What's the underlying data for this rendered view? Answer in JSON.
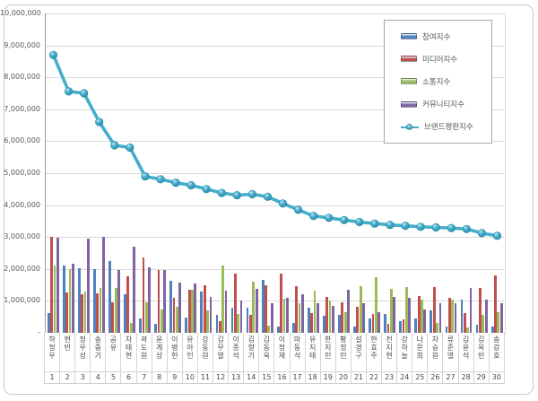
{
  "accent_colors": {
    "participation": "#4F81BD",
    "media": "#C0504D",
    "communication": "#9BBB59",
    "community": "#8064A2",
    "brand_line": "#44AECC",
    "gridline": "#d9d9d9",
    "axis_text": "#595959"
  },
  "legend": {
    "items": [
      {
        "key": "participation-index",
        "label": "참여지수",
        "color": "#4F81BD",
        "marker": "bar"
      },
      {
        "key": "media-index",
        "label": "미디어지수",
        "color": "#C0504D",
        "marker": "bar"
      },
      {
        "key": "communication-index",
        "label": "소통지수",
        "color": "#9BBB59",
        "marker": "bar"
      },
      {
        "key": "community-index",
        "label": "커뮤니티지수",
        "color": "#8064A2",
        "marker": "bar"
      },
      {
        "key": "brand-reputation-index",
        "label": "브랜드평판지수",
        "color": "#44AECC",
        "marker": "line"
      }
    ]
  },
  "chart_data": {
    "type": "bar+line",
    "title": "",
    "xlabel": "",
    "ylabel": "",
    "ylim": [
      0,
      10000000
    ],
    "ytick_interval": 1000000,
    "grid": true,
    "legend_position": "top-right-inside",
    "yticks": [
      {
        "v": 0,
        "label": "-"
      },
      {
        "v": 1000000,
        "label": "1,000,000"
      },
      {
        "v": 2000000,
        "label": "2,000,000"
      },
      {
        "v": 3000000,
        "label": "3,000,000"
      },
      {
        "v": 4000000,
        "label": "4,000,000"
      },
      {
        "v": 5000000,
        "label": "5,000,000"
      },
      {
        "v": 6000000,
        "label": "6,000,000"
      },
      {
        "v": 7000000,
        "label": "7,000,000"
      },
      {
        "v": 8000000,
        "label": "8,000,000"
      },
      {
        "v": 9000000,
        "label": "9,000,000"
      },
      {
        "v": 10000000,
        "label": "10,000,000"
      }
    ],
    "categories": [
      "하정우",
      "현빈",
      "정우성",
      "송중기",
      "공유",
      "차태현",
      "곽도원",
      "윤계상",
      "이병헌",
      "유아인",
      "강동원",
      "김무열",
      "이종석",
      "김향기",
      "김동욱",
      "이정재",
      "마동석",
      "유지태",
      "한지민",
      "황정민",
      "설경구",
      "한효주",
      "전지현",
      "강하늘",
      "나문희",
      "차승원",
      "류준열",
      "김윤석",
      "김옥빈",
      "송강호"
    ],
    "ranks": [
      1,
      2,
      3,
      4,
      5,
      6,
      7,
      8,
      9,
      10,
      11,
      12,
      13,
      14,
      15,
      16,
      17,
      18,
      19,
      20,
      21,
      22,
      23,
      24,
      25,
      26,
      27,
      28,
      29,
      30
    ],
    "series": [
      {
        "key": "participation-index-bar",
        "name": "참여지수",
        "type": "bar",
        "color": "#4F81BD",
        "values": [
          620000,
          2100000,
          2020000,
          2000000,
          2250000,
          1200000,
          460000,
          270000,
          1640000,
          480000,
          1300000,
          550000,
          800000,
          790000,
          1650000,
          200000,
          320000,
          790000,
          530000,
          550000,
          200000,
          440000,
          600000,
          380000,
          460000,
          690000,
          200000,
          1040000,
          250000,
          200000
        ]
      },
      {
        "key": "media-index-bar",
        "name": "미디어지수",
        "type": "bar",
        "color": "#C0504D",
        "values": [
          3000000,
          1270000,
          1220000,
          1250000,
          970000,
          1780000,
          2350000,
          1970000,
          1090000,
          1340000,
          1490000,
          360000,
          1860000,
          570000,
          1490000,
          1860000,
          1450000,
          630000,
          1130000,
          970000,
          830000,
          600000,
          270000,
          410000,
          1160000,
          1440000,
          1090000,
          630000,
          1410000,
          1790000
        ]
      },
      {
        "key": "communication-index-bar",
        "name": "소통지수",
        "type": "bar",
        "color": "#9BBB59",
        "values": [
          2100000,
          2000000,
          1280000,
          1410000,
          1400000,
          300000,
          950000,
          720000,
          830000,
          1340000,
          690000,
          2120000,
          600000,
          1600000,
          220000,
          1070000,
          930000,
          1320000,
          1000000,
          640000,
          1470000,
          1750000,
          1370000,
          1440000,
          1040000,
          320000,
          1040000,
          180000,
          550000,
          660000
        ]
      },
      {
        "key": "community-index-bar",
        "name": "커뮤니티지수",
        "type": "bar",
        "color": "#8064A2",
        "values": [
          2980000,
          2160000,
          2950000,
          3000000,
          1970000,
          2700000,
          2050000,
          1970000,
          1580000,
          1560000,
          1130000,
          1320000,
          1020000,
          1390000,
          930000,
          1090000,
          1210000,
          930000,
          850000,
          1340000,
          940000,
          660000,
          1130000,
          1090000,
          720000,
          930000,
          930000,
          1410000,
          1040000,
          940000
        ]
      },
      {
        "key": "brand-reputation-line",
        "name": "브랜드평판지수",
        "type": "line",
        "color": "#44AECC",
        "values": [
          8700000,
          7560000,
          7500000,
          6600000,
          5870000,
          5800000,
          4900000,
          4810000,
          4700000,
          4620000,
          4500000,
          4380000,
          4310000,
          4340000,
          4260000,
          4050000,
          3850000,
          3660000,
          3600000,
          3530000,
          3470000,
          3420000,
          3380000,
          3350000,
          3320000,
          3300000,
          3280000,
          3250000,
          3120000,
          3040000
        ]
      }
    ]
  }
}
